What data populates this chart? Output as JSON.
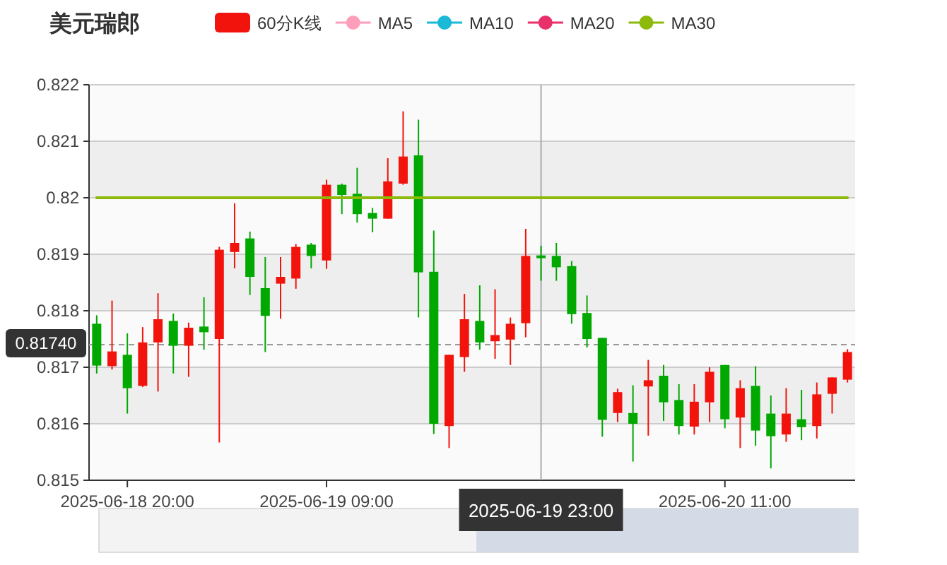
{
  "chart_data": {
    "type": "candlestick",
    "title": "美元瑞郎",
    "categories": [
      null,
      null,
      "2025-06-18 20:00",
      null,
      null,
      null,
      null,
      null,
      null,
      null,
      null,
      null,
      null,
      null,
      null,
      "2025-06-19 09:00",
      null,
      null,
      null,
      null,
      null,
      null,
      null,
      null,
      null,
      null,
      null,
      null,
      null,
      "2025-06-19 23:00",
      null,
      null,
      null,
      null,
      null,
      null,
      null,
      null,
      null,
      null,
      null,
      "2025-06-20 11:00",
      null,
      null,
      null,
      null,
      null,
      null,
      null,
      null
    ],
    "series": [
      {
        "name": "60分K线",
        "type": "candlestick",
        "color": "#f2140c",
        "ohlc": [
          [
            0.81777,
            0.81792,
            0.81689,
            0.81703
          ],
          [
            0.81702,
            0.81818,
            0.81696,
            0.81728
          ],
          [
            0.81722,
            0.8176,
            0.81618,
            0.81663
          ],
          [
            0.81667,
            0.81771,
            0.81665,
            0.81744
          ],
          [
            0.81744,
            0.81831,
            0.81657,
            0.81785
          ],
          [
            0.81782,
            0.81795,
            0.81689,
            0.81738
          ],
          [
            0.81738,
            0.81779,
            0.81683,
            0.8177
          ],
          [
            0.81772,
            0.81824,
            0.81731,
            0.81762
          ],
          [
            0.8175,
            0.81913,
            0.81567,
            0.81908
          ],
          [
            0.81904,
            0.8199,
            0.81875,
            0.8192
          ],
          [
            0.81928,
            0.8194,
            0.81828,
            0.8186
          ],
          [
            0.8184,
            0.81895,
            0.81727,
            0.81791
          ],
          [
            0.81848,
            0.81895,
            0.81786,
            0.8186
          ],
          [
            0.81857,
            0.81918,
            0.81839,
            0.81913
          ],
          [
            0.81917,
            0.8192,
            0.81875,
            0.81897
          ],
          [
            0.81889,
            0.82032,
            0.81874,
            0.82023
          ],
          [
            0.82023,
            0.82025,
            0.81971,
            0.82005
          ],
          [
            0.82007,
            0.82053,
            0.81956,
            0.81971
          ],
          [
            0.81973,
            0.81982,
            0.81939,
            0.81963
          ],
          [
            0.81963,
            0.8207,
            0.81963,
            0.82029
          ],
          [
            0.82025,
            0.82153,
            0.82023,
            0.82073
          ],
          [
            0.82075,
            0.82138,
            0.81788,
            0.81868
          ],
          [
            0.81869,
            0.81942,
            0.81582,
            0.816
          ],
          [
            0.81596,
            0.81722,
            0.81557,
            0.81722
          ],
          [
            0.81718,
            0.8183,
            0.81692,
            0.81785
          ],
          [
            0.81782,
            0.81845,
            0.81731,
            0.81744
          ],
          [
            0.81746,
            0.81838,
            0.81715,
            0.81757
          ],
          [
            0.81749,
            0.81788,
            0.81704,
            0.81777
          ],
          [
            0.81778,
            0.81945,
            0.81753,
            0.81897
          ],
          [
            0.81898,
            0.81915,
            0.81853,
            0.81893
          ],
          [
            0.81897,
            0.8192,
            0.81853,
            0.81877
          ],
          [
            0.81879,
            0.81888,
            0.81777,
            0.81794
          ],
          [
            0.81796,
            0.81827,
            0.81735,
            0.8175
          ],
          [
            0.81752,
            0.81752,
            0.81577,
            0.81607
          ],
          [
            0.81619,
            0.81662,
            0.81603,
            0.81656
          ],
          [
            0.81619,
            0.81668,
            0.81533,
            0.816
          ],
          [
            0.81666,
            0.81713,
            0.81579,
            0.81677
          ],
          [
            0.81685,
            0.81704,
            0.81605,
            0.81638
          ],
          [
            0.81642,
            0.8167,
            0.81581,
            0.81596
          ],
          [
            0.81595,
            0.8167,
            0.81581,
            0.81639
          ],
          [
            0.81638,
            0.817,
            0.81603,
            0.81692
          ],
          [
            0.81704,
            0.81704,
            0.81592,
            0.81608
          ],
          [
            0.81611,
            0.81677,
            0.81557,
            0.81663
          ],
          [
            0.81667,
            0.81702,
            0.81561,
            0.81588
          ],
          [
            0.81618,
            0.8165,
            0.81521,
            0.81578
          ],
          [
            0.81581,
            0.81663,
            0.81568,
            0.81618
          ],
          [
            0.81608,
            0.8166,
            0.81571,
            0.81594
          ],
          [
            0.81596,
            0.81673,
            0.81574,
            0.81652
          ],
          [
            0.81653,
            0.81682,
            0.81618,
            0.81682
          ],
          [
            0.81678,
            0.81732,
            0.81673,
            0.81727
          ]
        ],
        "colors": [
          "#00a800",
          "#f2140c",
          "#00a800",
          "#f2140c",
          "#f2140c",
          "#00a800",
          "#f2140c",
          "#00a800",
          "#f2140c",
          "#f2140c",
          "#00a800",
          "#00a800",
          "#f2140c",
          "#f2140c",
          "#00a800",
          "#f2140c",
          "#00a800",
          "#00a800",
          "#00a800",
          "#f2140c",
          "#f2140c",
          "#00a800",
          "#00a800",
          "#f2140c",
          "#f2140c",
          "#00a800",
          "#f2140c",
          "#f2140c",
          "#f2140c",
          "#00a800",
          "#00a800",
          "#00a800",
          "#00a800",
          "#00a800",
          "#f2140c",
          "#00a800",
          "#f2140c",
          "#00a800",
          "#00a800",
          "#f2140c",
          "#f2140c",
          "#00a800",
          "#f2140c",
          "#00a800",
          "#00a800",
          "#f2140c",
          "#00a800",
          "#f2140c",
          "#f2140c",
          "#f2140c"
        ]
      },
      {
        "name": "MA5",
        "type": "line",
        "color": "#ff9ebb",
        "values": [
          null,
          null,
          null,
          null,
          null,
          null,
          null,
          null,
          null,
          null,
          null,
          null,
          null,
          null,
          null,
          null,
          null,
          null,
          null,
          null,
          null,
          null,
          null,
          null,
          null,
          null,
          null,
          null,
          null,
          null,
          null,
          null,
          null,
          null,
          null,
          null,
          null,
          null,
          null,
          null,
          null,
          null,
          null,
          null,
          null,
          null,
          null,
          null,
          null,
          null
        ]
      },
      {
        "name": "MA10",
        "type": "line",
        "color": "#1ab9d6",
        "values": [
          null,
          null,
          null,
          null,
          null,
          null,
          null,
          null,
          null,
          null,
          null,
          null,
          null,
          null,
          null,
          null,
          null,
          null,
          null,
          null,
          null,
          null,
          null,
          null,
          null,
          null,
          null,
          null,
          null,
          null,
          null,
          null,
          null,
          null,
          null,
          null,
          null,
          null,
          null,
          null,
          null,
          null,
          null,
          null,
          null,
          null,
          null,
          null,
          null,
          null
        ]
      },
      {
        "name": "MA20",
        "type": "line",
        "color": "#e9306a",
        "values": [
          null,
          null,
          null,
          null,
          null,
          null,
          null,
          null,
          null,
          null,
          null,
          null,
          null,
          null,
          null,
          null,
          null,
          null,
          null,
          null,
          null,
          null,
          null,
          null,
          null,
          null,
          null,
          null,
          null,
          null,
          null,
          null,
          null,
          null,
          null,
          null,
          null,
          null,
          null,
          null,
          null,
          null,
          null,
          null,
          null,
          null,
          null,
          null,
          null,
          null
        ]
      },
      {
        "name": "MA30",
        "type": "line",
        "color": "#8db90b",
        "values": [
          0.82,
          0.82,
          0.82,
          0.82,
          0.82,
          0.82,
          0.82,
          0.82,
          0.82,
          0.82,
          0.82,
          0.82,
          0.82,
          0.82,
          0.82,
          0.82,
          0.82,
          0.82,
          0.82,
          0.82,
          0.82,
          0.82,
          0.82,
          0.82,
          0.82,
          0.82,
          0.82,
          0.82,
          0.82,
          0.82,
          0.82,
          0.82,
          0.82,
          0.82,
          0.82,
          0.82,
          0.82,
          0.82,
          0.82,
          0.82,
          0.82,
          0.82,
          0.82,
          0.82,
          0.82,
          0.82,
          0.82,
          0.82,
          0.82,
          0.82
        ]
      }
    ],
    "ylim": [
      0.815,
      0.822
    ],
    "yticks": [
      0.815,
      0.816,
      0.817,
      0.818,
      0.819,
      0.82,
      0.821,
      0.822
    ],
    "grid": "y",
    "legend": "top",
    "ref_lines": [
      {
        "axis": "x",
        "value": "2025-06-19 23:00",
        "color": "#aaaaaa",
        "line_style": "solid"
      },
      {
        "axis": "y",
        "value": 0.8174,
        "label": "0.81740",
        "color": "#999999",
        "line_style": "dashed"
      }
    ]
  }
}
